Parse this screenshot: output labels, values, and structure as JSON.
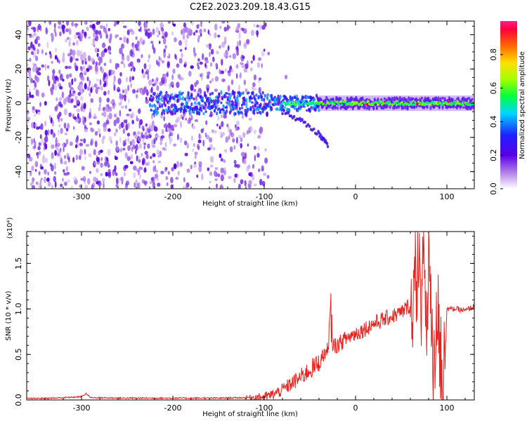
{
  "title": "C2E2.2023.209.18.43.G15",
  "chart_data": [
    {
      "type": "heatmap",
      "xlabel": "Height of straight line (km)",
      "ylabel": "Frequency (Hz)",
      "xlim": [
        -360,
        130
      ],
      "ylim": [
        -50,
        48
      ],
      "xticks": [
        -300,
        -200,
        -100,
        0,
        100
      ],
      "xtick_labels": [
        "-300",
        "-200",
        "-100",
        "0",
        "100"
      ],
      "yticks": [
        -40,
        -20,
        0,
        20,
        40
      ],
      "ytick_labels": [
        "-40",
        "-20",
        "0",
        "20",
        "40"
      ],
      "colorbar": {
        "label": "Normalized spectral amplitude",
        "range": [
          0,
          1
        ],
        "ticks": [
          0,
          0.2,
          0.4,
          0.6,
          0.8
        ],
        "tick_labels": [
          "0.0",
          "0.2",
          "0.4",
          "0.6",
          "0.8"
        ]
      },
      "features": [
        {
          "name": "noise field",
          "x_range": [
            -360,
            -95
          ],
          "y_range": [
            -50,
            48
          ],
          "amplitude": 0.15
        },
        {
          "name": "main band",
          "x_range": [
            -225,
            130
          ],
          "y_center": 0,
          "y_halfwidth": 4,
          "amplitude": 0.45
        },
        {
          "name": "peak band",
          "x_range": [
            -40,
            100
          ],
          "y_center": 0,
          "y_halfwidth": 1.5,
          "amplitude": 0.9
        },
        {
          "name": "secondary branch",
          "points": [
            [
              -80,
              -5
            ],
            [
              -60,
              -10
            ],
            [
              -40,
              -18
            ],
            [
              -30,
              -25
            ]
          ],
          "amplitude": 0.25
        }
      ]
    },
    {
      "type": "line",
      "xlabel": "Height of straight line (km)",
      "ylabel": "SNR (10 * v/v)",
      "y_multiplier": "(x10⁴)",
      "xlim": [
        -360,
        130
      ],
      "ylim": [
        0,
        18500
      ],
      "xticks": [
        -300,
        -200,
        -100,
        0,
        100
      ],
      "xtick_labels": [
        "-300",
        "-200",
        "-100",
        "0",
        "100"
      ],
      "yticks": [
        0,
        5000,
        10000,
        15000
      ],
      "ytick_labels": [
        "0.0",
        "0.5",
        "1.0",
        "1.5"
      ],
      "color": "#e8231e",
      "series": [
        {
          "x": [
            -360,
            -330,
            -300,
            -295,
            -290,
            -250,
            -200,
            -150,
            -120,
            -100,
            -90,
            -80,
            -70,
            -60,
            -50,
            -40,
            -35,
            -30,
            -27,
            -25,
            -20,
            -10,
            0,
            10,
            20,
            30,
            40,
            50,
            60,
            65,
            70,
            72,
            75,
            78,
            80,
            85,
            90,
            95,
            100,
            110,
            120,
            130
          ],
          "y": [
            150,
            200,
            350,
            700,
            250,
            200,
            200,
            200,
            250,
            350,
            600,
            1100,
            1800,
            2500,
            3300,
            4000,
            5000,
            5500,
            11000,
            6000,
            6000,
            6800,
            7300,
            7800,
            8400,
            8800,
            9200,
            9600,
            10500,
            11000,
            17000,
            7500,
            18000,
            6000,
            16500,
            1000,
            10000,
            500,
            10000,
            10000,
            9800,
            10300
          ]
        }
      ]
    }
  ]
}
